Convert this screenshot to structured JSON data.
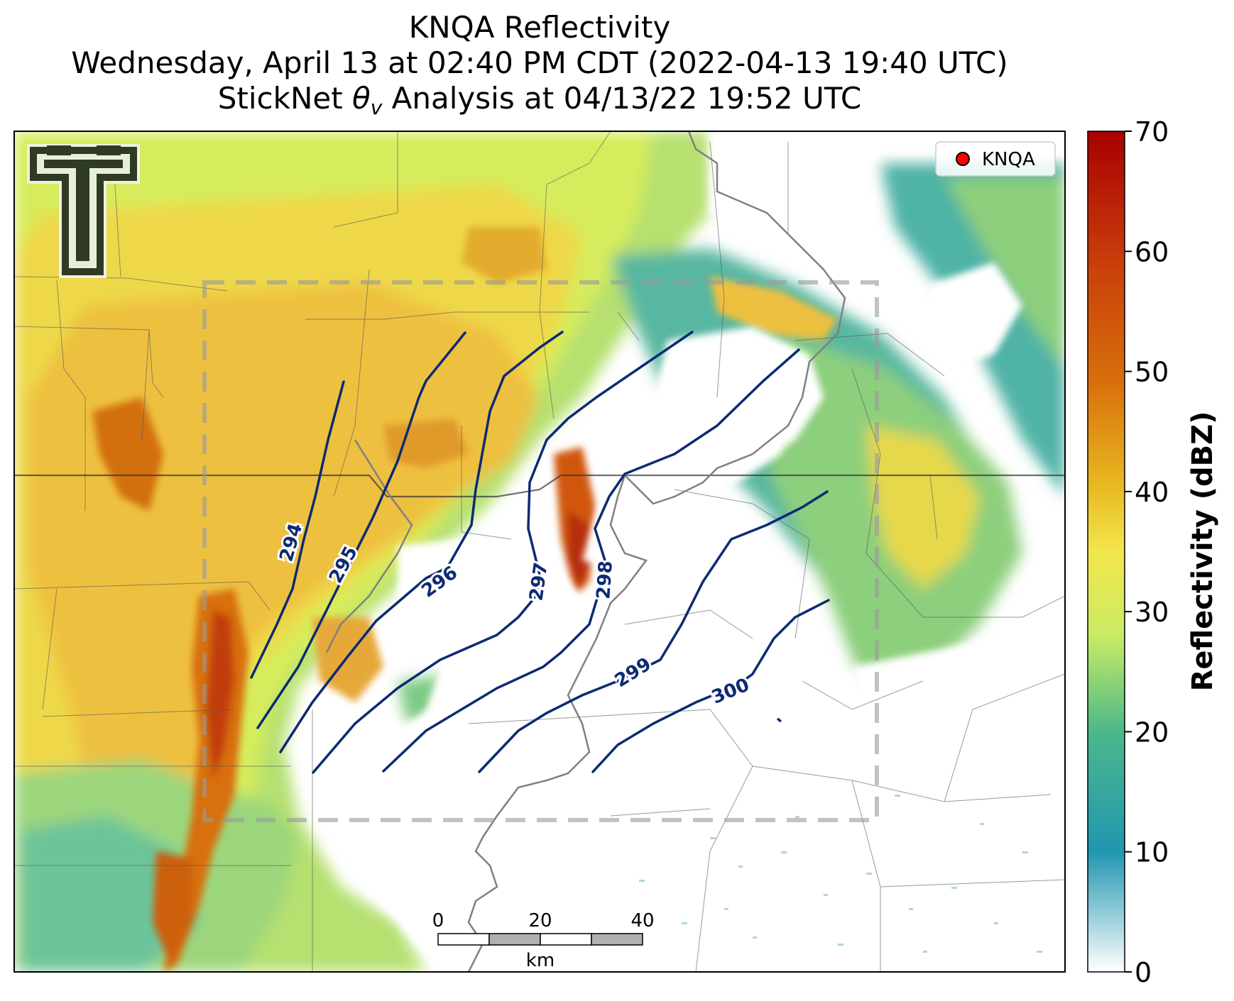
{
  "title": {
    "line1": "KNQA Reflectivity",
    "line2": "Wednesday, April 13 at 02:40 PM CDT (2022-04-13 19:40 UTC)",
    "line3_prefix": "StickNet ",
    "line3_theta": "θ",
    "line3_sub": "v",
    "line3_suffix": " Analysis at 04/13/22 19:52 UTC"
  },
  "colorbar": {
    "label": "Reflectivity (dBZ)",
    "ticks": [
      "0",
      "10",
      "20",
      "30",
      "40",
      "50",
      "60",
      "70"
    ],
    "stops": [
      "#ffffff",
      "#2196b0",
      "#4cb88a",
      "#c8ec64",
      "#f2e64c",
      "#e8b820",
      "#d8700c",
      "#c83c0c",
      "#a80000"
    ]
  },
  "legend": {
    "label": "KNQA",
    "marker_color": "#ff0000"
  },
  "contours": [
    {
      "value": "294",
      "label": "294"
    },
    {
      "value": "295",
      "label": "295"
    },
    {
      "value": "296",
      "label": "296"
    },
    {
      "value": "297",
      "label": "297"
    },
    {
      "value": "298",
      "label": "298"
    },
    {
      "value": "299",
      "label": "299"
    },
    {
      "value": "300",
      "label": "300"
    }
  ],
  "contour_color": "#0d2a73",
  "scalebar": {
    "ticks": [
      "0",
      "20",
      "40"
    ],
    "unit": "km"
  },
  "logo": {
    "name": "Texas Tech Double T"
  }
}
